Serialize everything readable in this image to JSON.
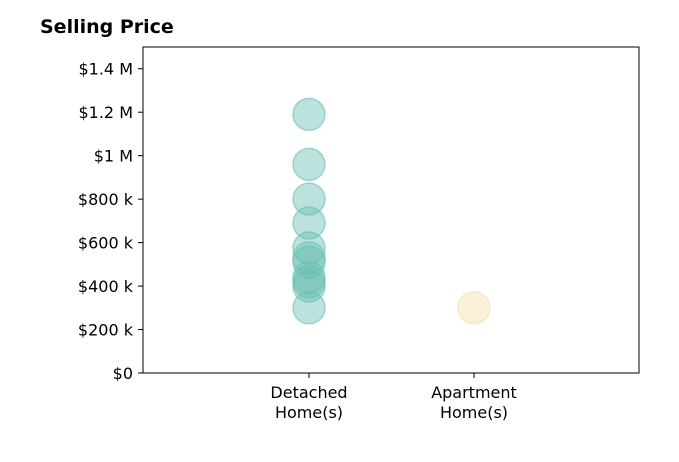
{
  "chart_data": {
    "type": "scatter",
    "title": "Selling Price",
    "xlabel": "",
    "ylabel": "",
    "categories": [
      "Detached\nHome(s)",
      "Apartment\nHome(s)"
    ],
    "ylim": [
      0,
      1500000
    ],
    "yticks": [
      0,
      200000,
      400000,
      600000,
      800000,
      1000000,
      1200000,
      1400000
    ],
    "ytick_labels": [
      "$0",
      "$200 k",
      "$400 k",
      "$600 k",
      "$800 k",
      "$1 M",
      "$1.2 M",
      "$1.4 M"
    ],
    "grid": false,
    "series": [
      {
        "category": "Detached\nHome(s)",
        "color": "#6BBFB4",
        "values": [
          1190000,
          960000,
          800000,
          690000,
          575000,
          530000,
          510000,
          440000,
          420000,
          400000,
          300000
        ]
      },
      {
        "category": "Apartment\nHome(s)",
        "color": "#F5DFAE",
        "values": [
          300000
        ]
      }
    ]
  }
}
